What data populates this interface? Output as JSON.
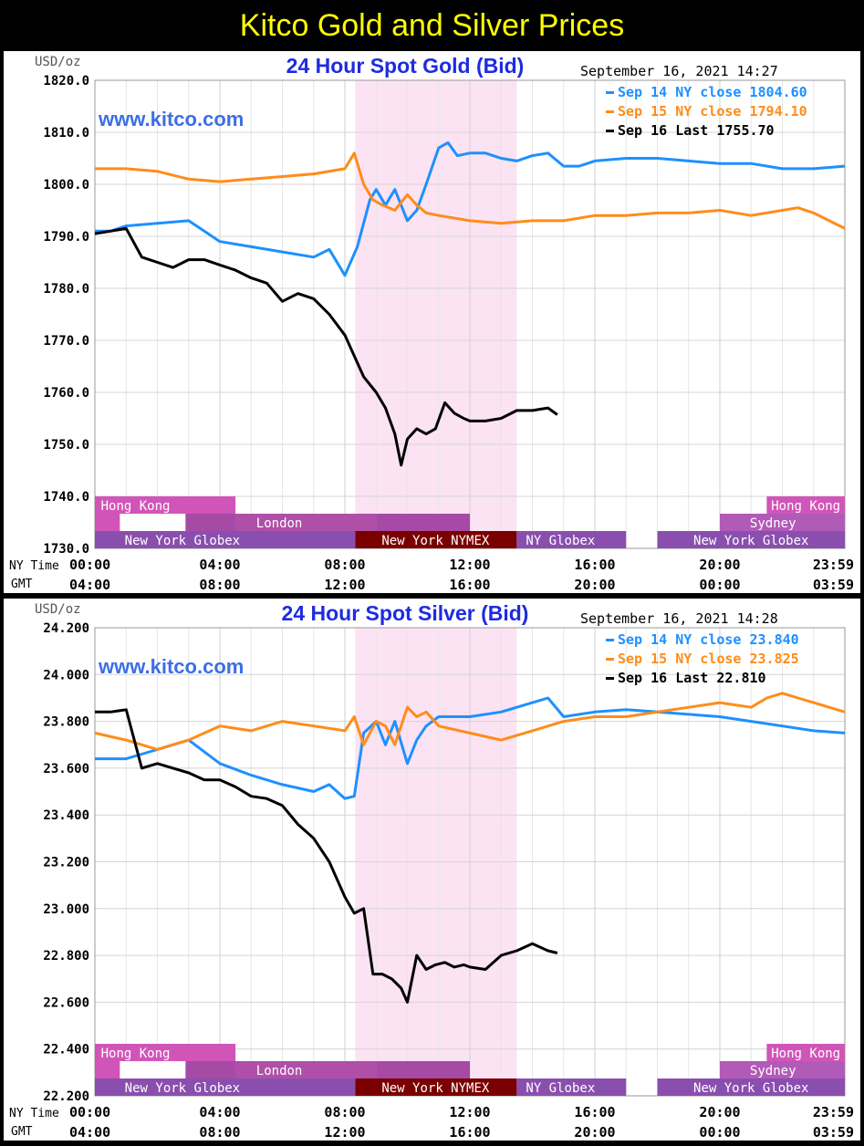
{
  "page_title": "Kitco Gold and Silver Prices",
  "colors": {
    "sep14": "#1e90ff",
    "sep15": "#ff8c1a",
    "sep16": "#000000",
    "nymex_shade": "#fbe3f3",
    "hk": "#d155b8",
    "london": "#a64aa6",
    "globex": "#8a4fae",
    "nymex": "#7a0000",
    "sydney": "#b25ab8"
  },
  "chart_data": [
    {
      "type": "line",
      "title": "24 Hour Spot Gold (Bid)",
      "timestamp": "September 16, 2021 14:27",
      "unit_label": "USD/oz",
      "watermark": "www.kitco.com",
      "ylim": [
        1730,
        1820
      ],
      "y_ticks": [
        "1820.0",
        "1810.0",
        "1800.0",
        "1790.0",
        "1780.0",
        "1770.0",
        "1760.0",
        "1750.0",
        "1740.0",
        "1730.0"
      ],
      "x_ticks_ny": [
        "00:00",
        "04:00",
        "08:00",
        "12:00",
        "16:00",
        "20:00",
        "23:59"
      ],
      "x_ticks_gmt": [
        "04:00",
        "08:00",
        "12:00",
        "16:00",
        "20:00",
        "00:00",
        "03:59"
      ],
      "row_labels": {
        "ny": "NY Time",
        "gmt": "GMT"
      },
      "legend": [
        {
          "label": "Sep 14 NY close 1804.60",
          "color": "#1e90ff"
        },
        {
          "label": "Sep 15 NY close 1794.10",
          "color": "#ff8c1a"
        },
        {
          "label": "Sep 16 Last 1755.70",
          "color": "#000000"
        }
      ],
      "sessions": {
        "hong_kong": "Hong Kong",
        "london": "London",
        "ny_globex": "New York Globex",
        "ny_nymex": "New York NYMEX",
        "ny_globex_short": "NY Globex",
        "sydney": "Sydney"
      },
      "series": [
        {
          "color": "#1e90ff",
          "x": [
            0,
            0.5,
            1,
            2,
            3,
            4,
            5,
            6,
            7,
            7.5,
            8,
            8.4,
            8.8,
            9,
            9.3,
            9.6,
            10,
            10.3,
            10.6,
            11,
            11.3,
            11.6,
            12,
            12.5,
            13,
            13.5,
            14,
            14.5,
            15,
            15.5,
            16,
            17,
            18,
            19,
            20,
            21,
            22,
            23,
            24
          ],
          "y": [
            1791,
            1791,
            1792,
            1792.5,
            1793,
            1789,
            1788,
            1787,
            1786,
            1787.5,
            1782.5,
            1788,
            1797,
            1799,
            1796,
            1799,
            1793,
            1795,
            1800,
            1807,
            1808,
            1805.5,
            1806,
            1806,
            1805,
            1804.5,
            1805.5,
            1806,
            1803.5,
            1803.5,
            1804.5,
            1805,
            1805,
            1804.5,
            1804,
            1804,
            1803,
            1803,
            1803.5
          ]
        },
        {
          "color": "#ff8c1a",
          "x": [
            0,
            1,
            2,
            3,
            4,
            5,
            6,
            7,
            8,
            8.3,
            8.6,
            8.9,
            9.2,
            9.6,
            10,
            10.3,
            10.6,
            11,
            12,
            13,
            14,
            15,
            16,
            17,
            18,
            19,
            20,
            21,
            22,
            22.5,
            23,
            24
          ],
          "y": [
            1803,
            1803,
            1802.5,
            1801,
            1800.5,
            1801,
            1801.5,
            1802,
            1803,
            1806,
            1800,
            1797,
            1796,
            1795,
            1798,
            1796,
            1794.5,
            1794,
            1793,
            1792.5,
            1793,
            1793,
            1794,
            1794,
            1794.5,
            1794.5,
            1795,
            1794,
            1795,
            1795.5,
            1794.5,
            1791.5
          ]
        },
        {
          "color": "#000000",
          "x": [
            0,
            0.5,
            1,
            1.5,
            2,
            2.5,
            3,
            3.5,
            4,
            4.5,
            5,
            5.5,
            6,
            6.5,
            7,
            7.5,
            8,
            8.3,
            8.6,
            9,
            9.3,
            9.6,
            9.8,
            10,
            10.3,
            10.6,
            10.9,
            11.2,
            11.5,
            11.8,
            12,
            12.5,
            13,
            13.5,
            14,
            14.5,
            14.8
          ],
          "y": [
            1790.5,
            1791,
            1791.5,
            1786,
            1785,
            1784,
            1785.5,
            1785.5,
            1784.5,
            1783.5,
            1782,
            1781,
            1777.5,
            1779,
            1778,
            1775,
            1771,
            1767,
            1763,
            1760,
            1757,
            1752,
            1746,
            1751,
            1753,
            1752,
            1753,
            1758,
            1756,
            1755,
            1754.5,
            1754.5,
            1755,
            1756.5,
            1756.5,
            1757,
            1755.7
          ]
        }
      ]
    },
    {
      "type": "line",
      "title": "24 Hour Spot Silver (Bid)",
      "timestamp": "September 16, 2021 14:28",
      "unit_label": "USD/oz",
      "watermark": "www.kitco.com",
      "ylim": [
        22.2,
        24.2
      ],
      "y_ticks": [
        "24.200",
        "24.000",
        "23.800",
        "23.600",
        "23.400",
        "23.200",
        "23.000",
        "22.800",
        "22.600",
        "22.400",
        "22.200"
      ],
      "x_ticks_ny": [
        "00:00",
        "04:00",
        "08:00",
        "12:00",
        "16:00",
        "20:00",
        "23:59"
      ],
      "x_ticks_gmt": [
        "04:00",
        "08:00",
        "12:00",
        "16:00",
        "20:00",
        "00:00",
        "03:59"
      ],
      "row_labels": {
        "ny": "NY Time",
        "gmt": "GMT"
      },
      "legend": [
        {
          "label": "Sep 14 NY close 23.840",
          "color": "#1e90ff"
        },
        {
          "label": "Sep 15 NY close 23.825",
          "color": "#ff8c1a"
        },
        {
          "label": "Sep 16 Last 22.810",
          "color": "#000000"
        }
      ],
      "sessions": {
        "hong_kong": "Hong Kong",
        "london": "London",
        "ny_globex": "New York Globex",
        "ny_nymex": "New York NYMEX",
        "ny_globex_short": "NY Globex",
        "sydney": "Sydney"
      },
      "series": [
        {
          "color": "#1e90ff",
          "x": [
            0,
            1,
            1.5,
            2,
            3,
            4,
            5,
            6,
            7,
            7.5,
            8,
            8.3,
            8.6,
            9,
            9.3,
            9.6,
            10,
            10.3,
            10.6,
            11,
            12,
            13,
            14,
            14.5,
            15,
            16,
            17,
            18,
            19,
            20,
            21,
            22,
            23,
            24
          ],
          "y": [
            23.64,
            23.64,
            23.66,
            23.68,
            23.72,
            23.62,
            23.57,
            23.53,
            23.5,
            23.53,
            23.47,
            23.48,
            23.75,
            23.8,
            23.7,
            23.8,
            23.62,
            23.72,
            23.78,
            23.82,
            23.82,
            23.84,
            23.88,
            23.9,
            23.82,
            23.84,
            23.85,
            23.84,
            23.83,
            23.82,
            23.8,
            23.78,
            23.76,
            23.75
          ]
        },
        {
          "color": "#ff8c1a",
          "x": [
            0,
            1,
            2,
            3,
            4,
            5,
            6,
            7,
            8,
            8.3,
            8.6,
            9,
            9.3,
            9.6,
            10,
            10.3,
            10.6,
            11,
            12,
            13,
            14,
            15,
            16,
            17,
            18,
            19,
            20,
            21,
            21.5,
            22,
            22.5,
            23,
            24
          ],
          "y": [
            23.75,
            23.72,
            23.68,
            23.72,
            23.78,
            23.76,
            23.8,
            23.78,
            23.76,
            23.82,
            23.7,
            23.8,
            23.78,
            23.7,
            23.86,
            23.82,
            23.84,
            23.78,
            23.75,
            23.72,
            23.76,
            23.8,
            23.82,
            23.82,
            23.84,
            23.86,
            23.88,
            23.86,
            23.9,
            23.92,
            23.9,
            23.88,
            23.84
          ]
        },
        {
          "color": "#000000",
          "x": [
            0,
            0.5,
            1,
            1.5,
            2,
            2.5,
            3,
            3.5,
            4,
            4.5,
            5,
            5.5,
            6,
            6.5,
            7,
            7.5,
            8,
            8.3,
            8.6,
            8.9,
            9.2,
            9.5,
            9.8,
            10,
            10.3,
            10.6,
            10.9,
            11.2,
            11.5,
            11.8,
            12,
            12.5,
            13,
            13.5,
            14,
            14.5,
            14.8
          ],
          "y": [
            23.84,
            23.84,
            23.85,
            23.6,
            23.62,
            23.6,
            23.58,
            23.55,
            23.55,
            23.52,
            23.48,
            23.47,
            23.44,
            23.36,
            23.3,
            23.2,
            23.05,
            22.98,
            23.0,
            22.72,
            22.72,
            22.7,
            22.66,
            22.6,
            22.8,
            22.74,
            22.76,
            22.77,
            22.75,
            22.76,
            22.75,
            22.74,
            22.8,
            22.82,
            22.85,
            22.82,
            22.81
          ]
        }
      ]
    }
  ]
}
